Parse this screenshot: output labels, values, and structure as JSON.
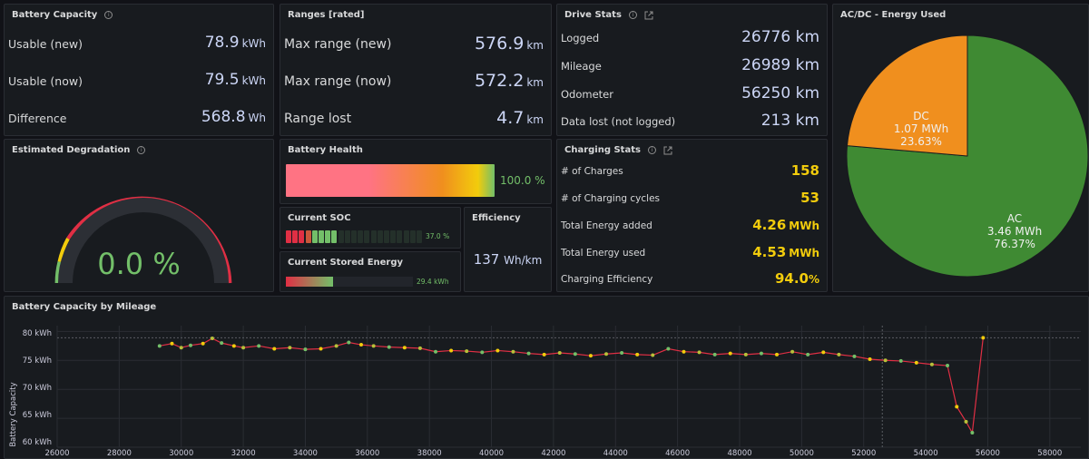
{
  "colors": {
    "green": "#73bf69",
    "red": "#e02f44",
    "yellow": "#f2cc0c",
    "orange": "#f08f1e",
    "pie_green": "#3f8a33",
    "blue_text": "#ccd6f6"
  },
  "battery_capacity": {
    "title": "Battery Capacity",
    "rows": [
      {
        "label": "Usable (new)",
        "value": "78.9",
        "unit": "kWh"
      },
      {
        "label": "Usable (now)",
        "value": "79.5",
        "unit": "kWh"
      },
      {
        "label": "Difference",
        "value": "568.8",
        "unit": "Wh"
      }
    ]
  },
  "ranges": {
    "title": "Ranges [rated]",
    "rows": [
      {
        "label": "Max range (new)",
        "value": "576.9",
        "unit": "km"
      },
      {
        "label": "Max range (now)",
        "value": "572.2",
        "unit": "km"
      },
      {
        "label": "Range lost",
        "value": "4.7",
        "unit": "km"
      }
    ]
  },
  "drive_stats": {
    "title": "Drive Stats",
    "rows": [
      {
        "label": "Logged",
        "value": "26776 km"
      },
      {
        "label": "Mileage",
        "value": "26989 km"
      },
      {
        "label": "Odometer",
        "value": "56250 km"
      },
      {
        "label": "Data lost (not logged)",
        "value": "213 km"
      }
    ]
  },
  "energy_used": {
    "title": "AC/DC - Energy Used",
    "slices": [
      {
        "name": "AC",
        "value": "3.46 MWh",
        "percent": "76.37%",
        "fraction": 0.7637,
        "color": "#3f8a33"
      },
      {
        "name": "DC",
        "value": "1.07 MWh",
        "percent": "23.63%",
        "fraction": 0.2363,
        "color": "#f08f1e"
      }
    ]
  },
  "degradation": {
    "title": "Estimated Degradation",
    "value": "0.0 %",
    "level": 0.0
  },
  "battery_health": {
    "title": "Battery Health",
    "value": "100.0 %",
    "level": 1.0
  },
  "current_soc": {
    "title": "Current SOC",
    "value": "37.0 %",
    "level": 0.37,
    "segments": 21
  },
  "efficiency": {
    "title": "Efficiency",
    "value": "137",
    "unit": "Wh/km"
  },
  "stored_energy": {
    "title": "Current Stored Energy",
    "value": "29.4 kWh",
    "level": 0.37
  },
  "charging_stats": {
    "title": "Charging Stats",
    "rows": [
      {
        "label": "# of Charges",
        "value": "158",
        "unit": ""
      },
      {
        "label": "# of Charging cycles",
        "value": "53",
        "unit": ""
      },
      {
        "label": "Total Energy added",
        "value": "4.26",
        "unit": "MWh"
      },
      {
        "label": "Total Energy used",
        "value": "4.53",
        "unit": "MWh"
      },
      {
        "label": "Charging Efficiency",
        "value": "94.0",
        "unit": "%"
      }
    ]
  },
  "capacity_chart": {
    "title": "Battery Capacity by Mileage",
    "ylabel": "Battery Capacity",
    "y_ticks": [
      "80 kWh",
      "75 kWh",
      "70 kWh",
      "65 kWh",
      "60 kWh"
    ],
    "x_ticks": [
      "26000",
      "28000",
      "30000",
      "32000",
      "34000",
      "36000",
      "38000",
      "40000",
      "42000",
      "44000",
      "46000",
      "48000",
      "50000",
      "52000",
      "54000",
      "56000",
      "58000"
    ]
  },
  "chart_data": {
    "type": "line",
    "title": "Battery Capacity by Mileage",
    "xlabel": "",
    "ylabel": "Battery Capacity",
    "xlim": [
      26000,
      59000
    ],
    "ylim": [
      60,
      81
    ],
    "reference_line": 78.9,
    "series": [
      {
        "x": [
          29300,
          29700,
          30000,
          30300,
          30700,
          31000,
          31300,
          31700,
          32000,
          32500,
          33000,
          33500,
          34000,
          34500,
          35000,
          35400,
          35800,
          36200,
          36700,
          37200,
          37700,
          38200,
          38700,
          39200,
          39700,
          40200,
          40700,
          41200,
          41700,
          42200,
          42700,
          43200,
          43700,
          44200,
          44700,
          45200,
          45700,
          46200,
          46700,
          47200,
          47700,
          48200,
          48700,
          49200,
          49700,
          50200,
          50700,
          51200,
          51700,
          52200,
          52700,
          53200,
          53700,
          54200,
          54700,
          55000,
          55300,
          55500,
          55850
        ],
        "y": [
          77.5,
          77.9,
          77.2,
          77.6,
          77.9,
          78.8,
          78.0,
          77.5,
          77.2,
          77.5,
          77.0,
          77.2,
          76.9,
          77.0,
          77.5,
          78.1,
          77.7,
          77.5,
          77.3,
          77.2,
          77.1,
          76.5,
          76.7,
          76.6,
          76.4,
          76.7,
          76.5,
          76.2,
          76.0,
          76.3,
          76.1,
          75.8,
          76.1,
          76.3,
          76.0,
          75.9,
          77.0,
          76.5,
          76.4,
          76.0,
          76.2,
          76.0,
          76.2,
          76.0,
          76.5,
          76.0,
          76.4,
          76.0,
          75.7,
          75.2,
          75.0,
          74.9,
          74.6,
          74.3,
          74.1,
          67.0,
          64.4,
          62.5,
          78.9
        ]
      }
    ]
  }
}
